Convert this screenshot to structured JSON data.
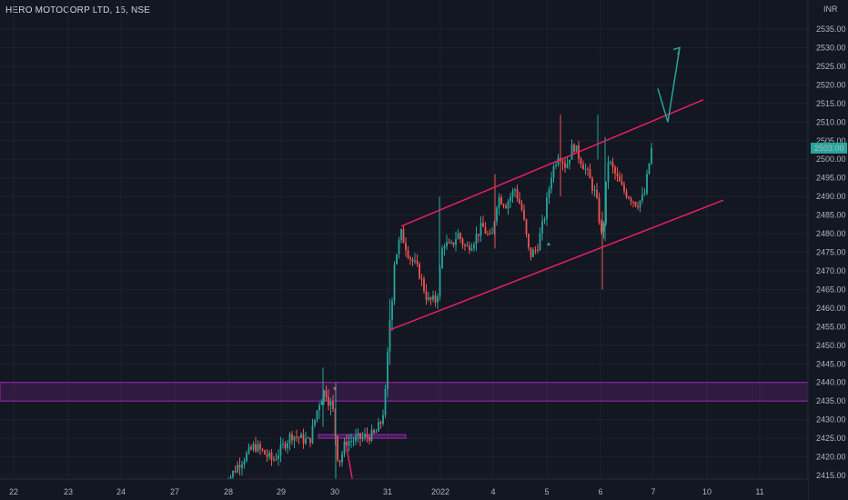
{
  "header": {
    "symbol": "HERO MOTOCORP LTD, 15, NSE",
    "currency": "INR"
  },
  "chart_data": {
    "type": "candlestick",
    "instrument": "HERO MOTOCORP LTD",
    "interval": "15",
    "exchange": "NSE",
    "currency": "INR",
    "last_price_label": "2503.00",
    "ylim": [
      2411,
      2543
    ],
    "y_ticks": [
      2415,
      2420,
      2425,
      2430,
      2435,
      2440,
      2445,
      2450,
      2455,
      2460,
      2465,
      2470,
      2475,
      2480,
      2485,
      2490,
      2495,
      2500,
      2505,
      2510,
      2515,
      2520,
      2525,
      2530,
      2535
    ],
    "y_tick_labels": [
      "2415.00",
      "2420.00",
      "2425.00",
      "2430.00",
      "2435.00",
      "2440.00",
      "2445.00",
      "2450.00",
      "2455.00",
      "2460.00",
      "2465.00",
      "2470.00",
      "2475.00",
      "2480.00",
      "2485.00",
      "2490.00",
      "2495.00",
      "2500.00",
      "2505.00",
      "2510.00",
      "2515.00",
      "2520.00",
      "2525.00",
      "2530.00",
      "2535.00"
    ],
    "x_ticks": [
      "22",
      "23",
      "24",
      "27",
      "28",
      "29",
      "30",
      "31",
      "2022",
      "4",
      "5",
      "6",
      "7",
      "10",
      "11"
    ],
    "colors": {
      "background": "#131722",
      "up": "#26a69a",
      "down": "#ef5350",
      "channel": "#e91e63",
      "zone": "#9c27b0",
      "projection": "#26a69a",
      "grid": "#1e222d"
    },
    "grid": true,
    "annotations": {
      "zone_low": 2435,
      "zone_high": 2440,
      "small_zone_low": 2425,
      "small_zone_high": 2426,
      "channel_upper": {
        "from_x": 441,
        "from_price": 2482,
        "to_x": 773,
        "to_price": 2516
      },
      "channel_lower": {
        "from_x": 427,
        "from_price": 2454,
        "to_x": 795,
        "to_price": 2489
      },
      "projection_path": [
        [
          723,
          2519
        ],
        [
          734,
          2510
        ],
        [
          747,
          2530
        ]
      ]
    }
  }
}
